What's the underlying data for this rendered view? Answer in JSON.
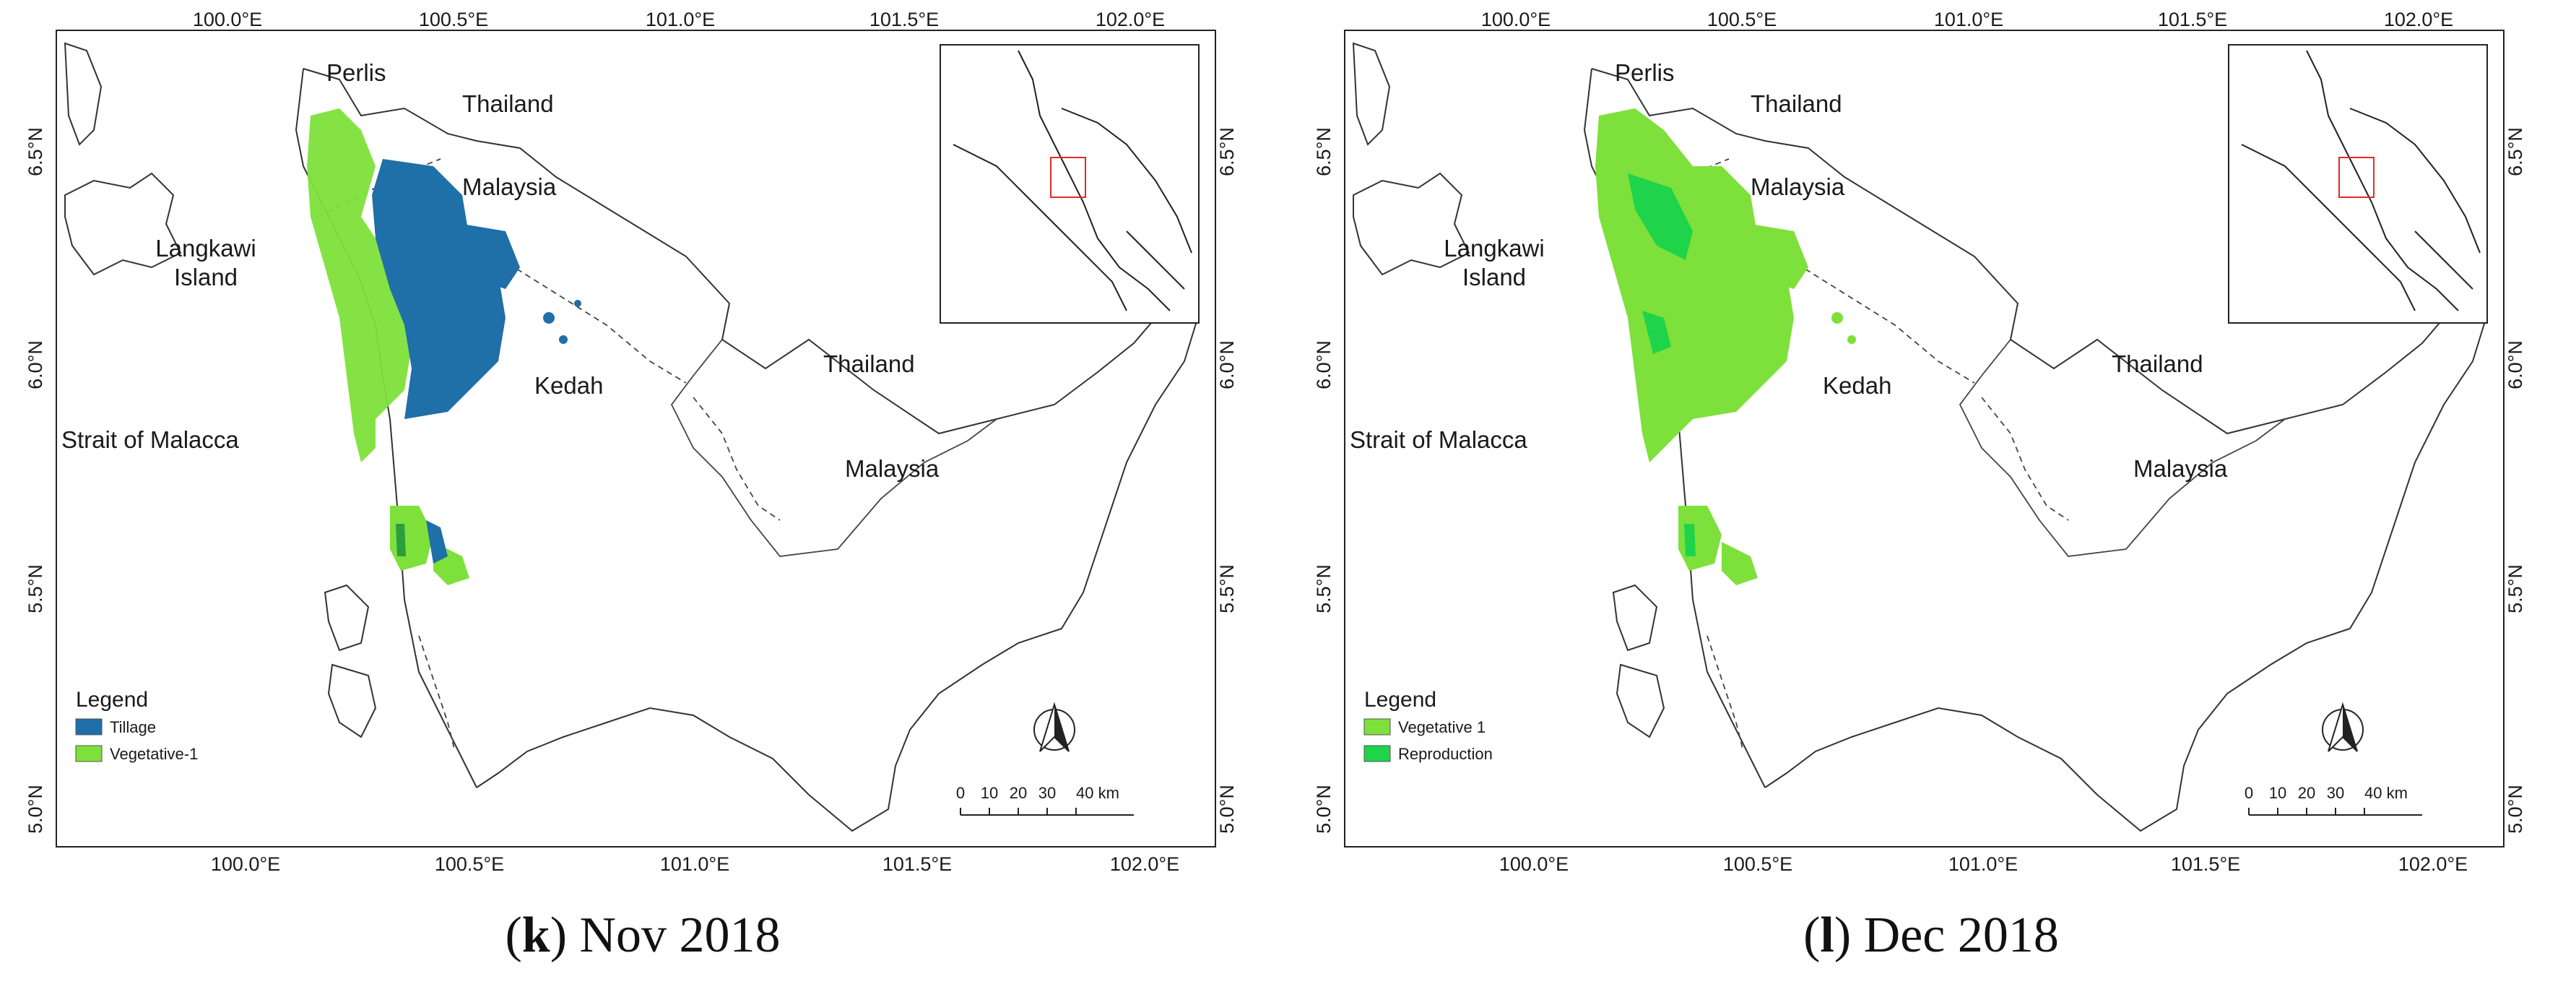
{
  "panels": [
    {
      "id": "k",
      "caption_letter": "k",
      "caption_rest": ") Nov 2018",
      "legend": {
        "title": "Legend",
        "items": [
          {
            "label": "Tillage",
            "color": "#1f6fa8"
          },
          {
            "label": "Vegetative-1",
            "color": "#7ee03a"
          }
        ]
      }
    },
    {
      "id": "l",
      "caption_letter": "l",
      "caption_rest": ") Dec 2018",
      "legend": {
        "title": "Legend",
        "items": [
          {
            "label": "Vegetative 1",
            "color": "#7ee03a"
          },
          {
            "label": "Reproduction",
            "color": "#1fd34b"
          }
        ]
      }
    }
  ],
  "axes": {
    "lon_ticks": [
      "100.0°E",
      "100.5°E",
      "101.0°E",
      "101.5°E",
      "102.0°E"
    ],
    "lat_ticks": [
      "6.5°N",
      "6.0°N",
      "5.5°N",
      "5.0°N"
    ]
  },
  "places": {
    "perlis": "Perlis",
    "thailand_north": "Thailand",
    "malaysia_north": "Malaysia",
    "langkawi_1": "Langkawi",
    "langkawi_2": "Island",
    "kedah": "Kedah",
    "thailand_east": "Thailand",
    "malaysia_east": "Malaysia",
    "strait": "Strait of Malacca"
  },
  "scale_bar": {
    "labels": [
      "0",
      "10",
      "20",
      "30",
      "40 km"
    ]
  }
}
